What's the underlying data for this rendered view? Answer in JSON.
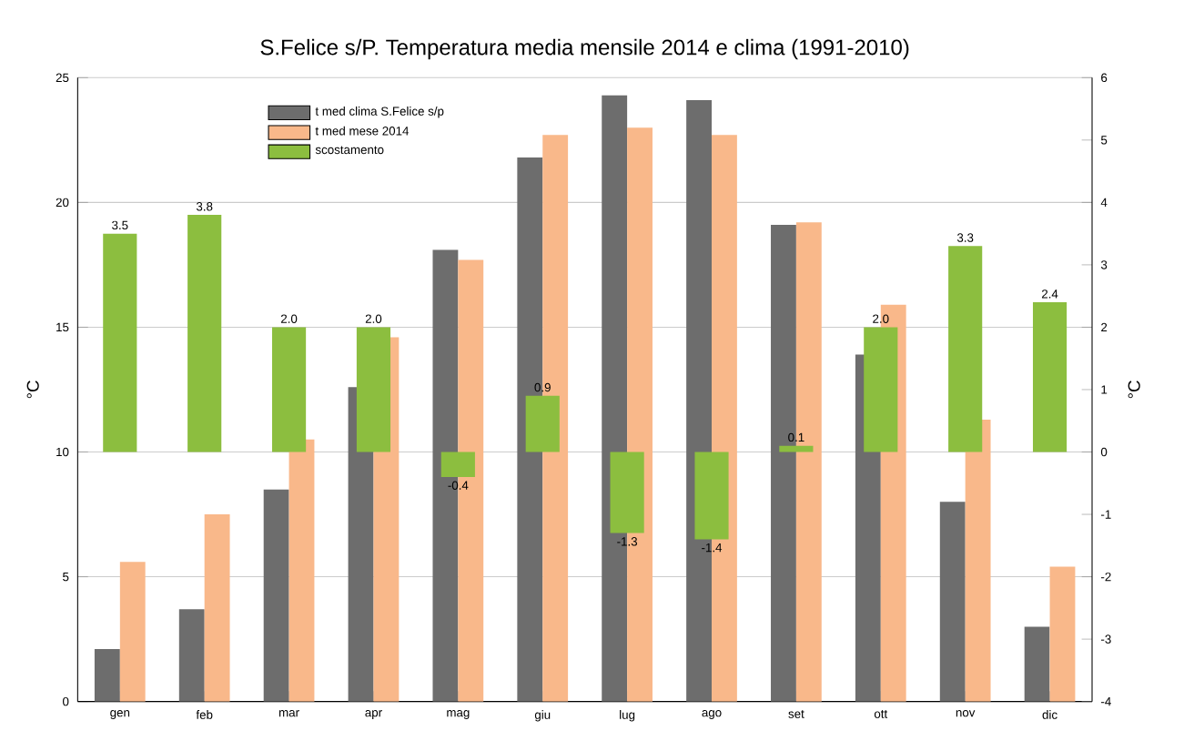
{
  "chart_data": {
    "type": "bar",
    "title": "S.Felice s/P.  Temperatura media mensile 2014 e clima (1991-2010)",
    "ylabel": "°C",
    "y2label": "°C",
    "categories": [
      "gen",
      "feb",
      "mar",
      "apr",
      "mag",
      "giu",
      "lug",
      "ago",
      "set",
      "ott",
      "nov",
      "dic"
    ],
    "series": [
      {
        "name": "t med clima S.Felice s/p",
        "color": "#6d6d6d",
        "values": [
          2.1,
          3.7,
          8.5,
          12.6,
          18.1,
          21.8,
          24.3,
          24.1,
          19.1,
          13.9,
          8.0,
          3.0
        ]
      },
      {
        "name": "t med mese 2014",
        "color": "#f9b88a",
        "values": [
          5.6,
          7.5,
          10.5,
          14.6,
          17.7,
          22.7,
          23.0,
          22.7,
          19.2,
          15.9,
          11.3,
          5.4
        ]
      },
      {
        "name": "scostamento",
        "color": "#8cbe3f",
        "axis": "y2",
        "values": [
          3.5,
          3.8,
          2.0,
          2.0,
          -0.4,
          0.9,
          -1.3,
          -1.4,
          0.1,
          2.0,
          3.3,
          2.4
        ],
        "value_labels": [
          "3.5",
          "3.8",
          "2.0",
          "2.0",
          "-0.4",
          "0.9",
          "-1.3",
          "-1.4",
          "0.1",
          "2.0",
          "3.3",
          "2.4"
        ]
      }
    ],
    "ylim": [
      0,
      25
    ],
    "yticks": [
      0,
      5,
      10,
      15,
      20,
      25
    ],
    "y2lim": [
      -4,
      6
    ],
    "y2ticks": [
      -4,
      -3,
      -2,
      -1,
      0,
      1,
      2,
      3,
      4,
      5,
      6
    ],
    "grid": "y",
    "legend": "top left"
  }
}
